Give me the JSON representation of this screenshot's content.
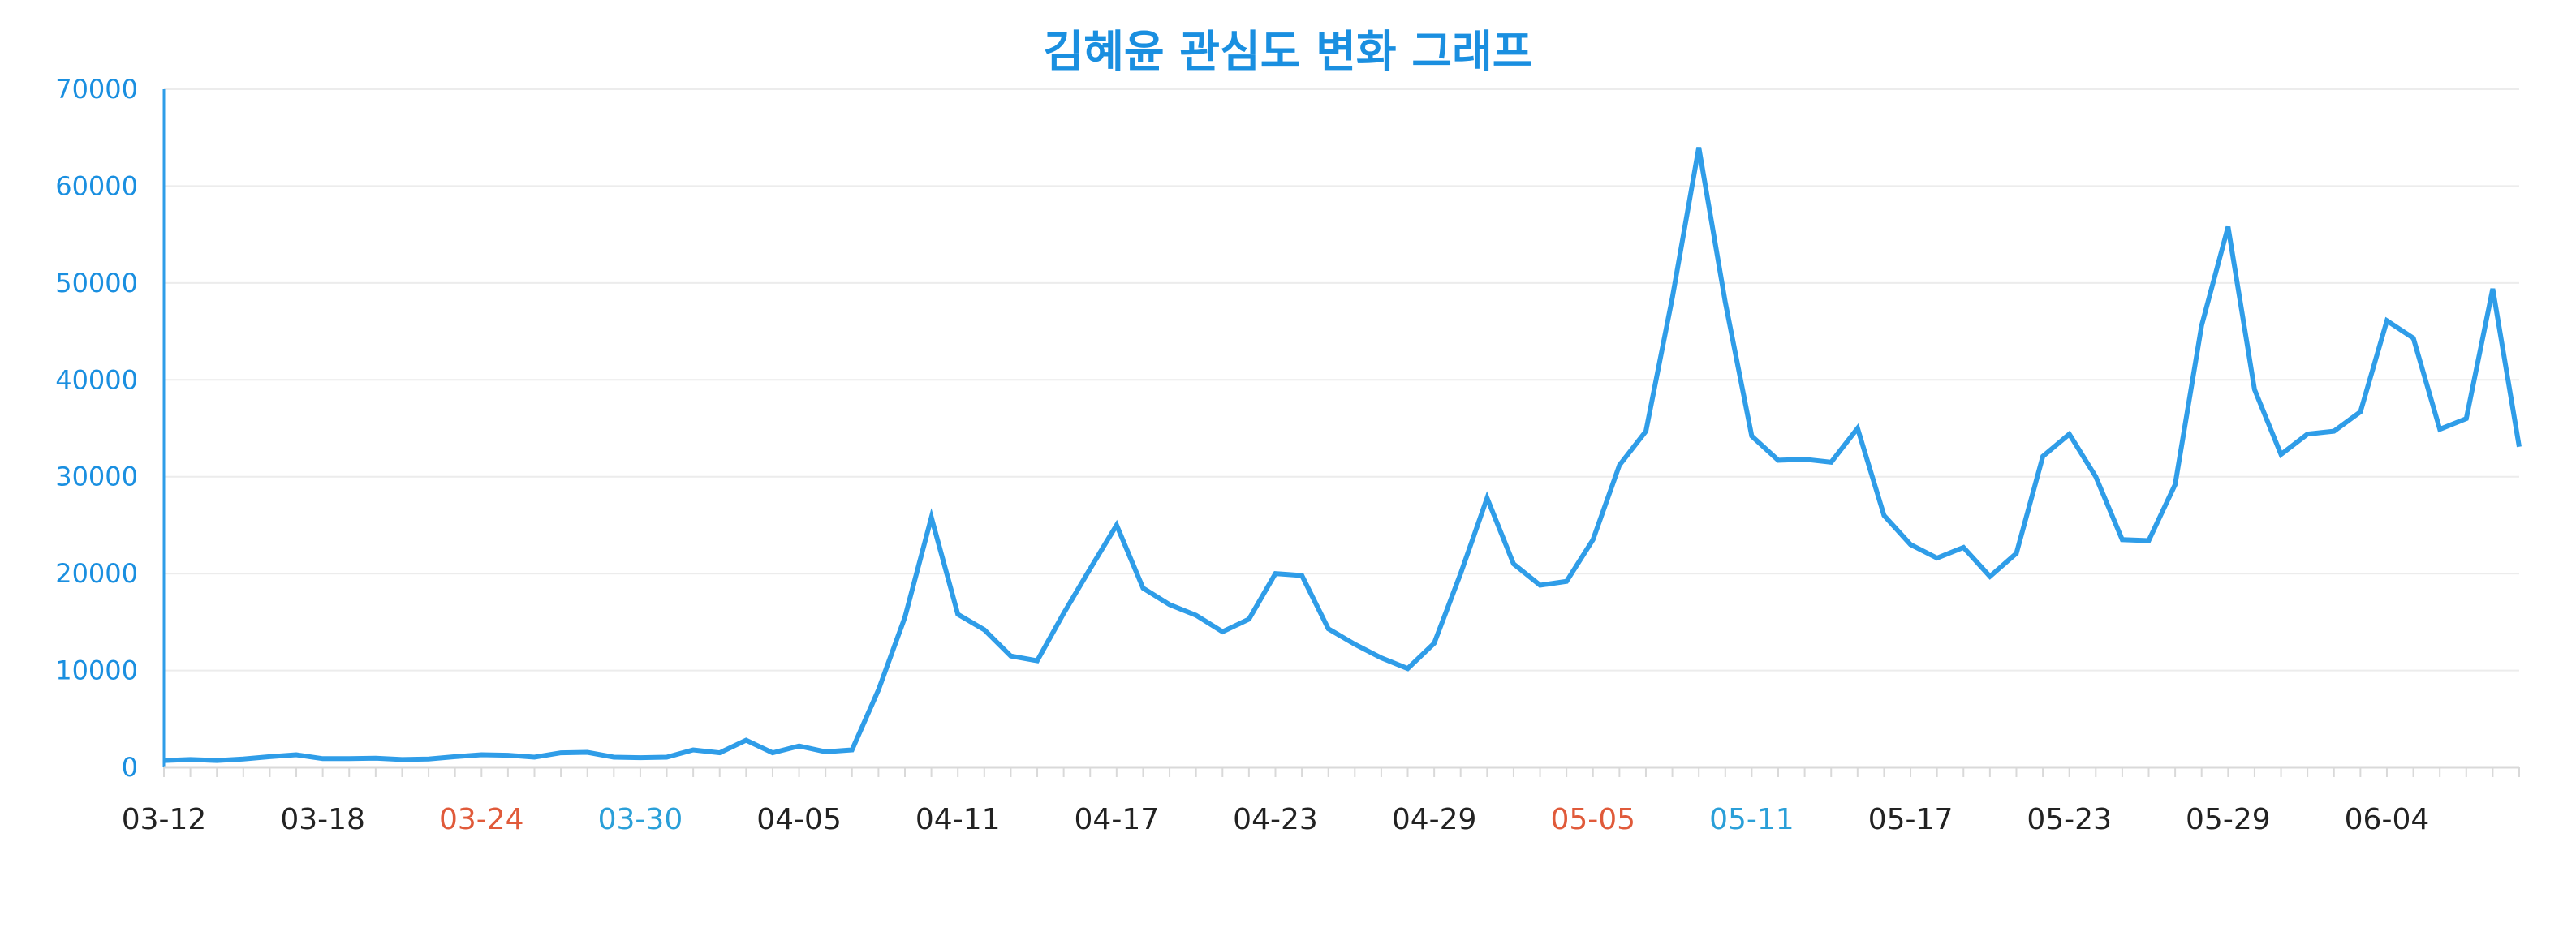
{
  "chart_data": {
    "type": "line",
    "title": "김혜윤 관심도 변화 그래프",
    "xlabel": "",
    "ylabel": "",
    "ylim": [
      0,
      70000
    ],
    "y_ticks": [
      0,
      10000,
      20000,
      30000,
      40000,
      50000,
      60000,
      70000
    ],
    "x_ticks": [
      {
        "label": "03-12",
        "index": 0,
        "color": "#222222"
      },
      {
        "label": "03-18",
        "index": 6,
        "color": "#222222"
      },
      {
        "label": "03-24",
        "index": 12,
        "color": "#e05a3a"
      },
      {
        "label": "03-30",
        "index": 18,
        "color": "#2a9fd8"
      },
      {
        "label": "04-05",
        "index": 24,
        "color": "#222222"
      },
      {
        "label": "04-11",
        "index": 30,
        "color": "#222222"
      },
      {
        "label": "04-17",
        "index": 36,
        "color": "#222222"
      },
      {
        "label": "04-23",
        "index": 42,
        "color": "#222222"
      },
      {
        "label": "04-29",
        "index": 48,
        "color": "#222222"
      },
      {
        "label": "05-05",
        "index": 54,
        "color": "#e05a3a"
      },
      {
        "label": "05-11",
        "index": 60,
        "color": "#2a9fd8"
      },
      {
        "label": "05-17",
        "index": 66,
        "color": "#222222"
      },
      {
        "label": "05-23",
        "index": 72,
        "color": "#222222"
      },
      {
        "label": "05-29",
        "index": 78,
        "color": "#222222"
      },
      {
        "label": "06-04",
        "index": 84,
        "color": "#222222"
      }
    ],
    "grid": true,
    "legend": "none",
    "colors": {
      "title": "#1a8fe0",
      "line": "#2f9de8",
      "axis": "#2f9de8",
      "ytick": "#1a8fe0",
      "grid": "#ececec"
    },
    "series": [
      {
        "values": [
          700,
          800,
          700,
          850,
          1100,
          1300,
          900,
          900,
          950,
          800,
          850,
          1100,
          1300,
          1250,
          1050,
          1500,
          1550,
          1050,
          1000,
          1050,
          1800,
          1500,
          2800,
          1500,
          2200,
          1600,
          1800,
          8000,
          15500,
          25800,
          15800,
          14200,
          11500,
          11000,
          15900,
          20500,
          25000,
          18500,
          16800,
          15700,
          14000,
          15300,
          20000,
          19800,
          14300,
          12700,
          11300,
          10200,
          12800,
          20000,
          27800,
          21000,
          18800,
          19200,
          23500,
          31200,
          34700,
          48500,
          64000,
          48000,
          34200,
          31700,
          31800,
          31500,
          35000,
          26000,
          23000,
          21600,
          22700,
          19700,
          22100,
          32100,
          34400,
          30000,
          23500,
          23400,
          29200,
          45600,
          55800,
          39000,
          32300,
          34400,
          34700,
          36700,
          46100,
          44300,
          34900,
          36000,
          49400,
          33100
        ]
      }
    ]
  }
}
